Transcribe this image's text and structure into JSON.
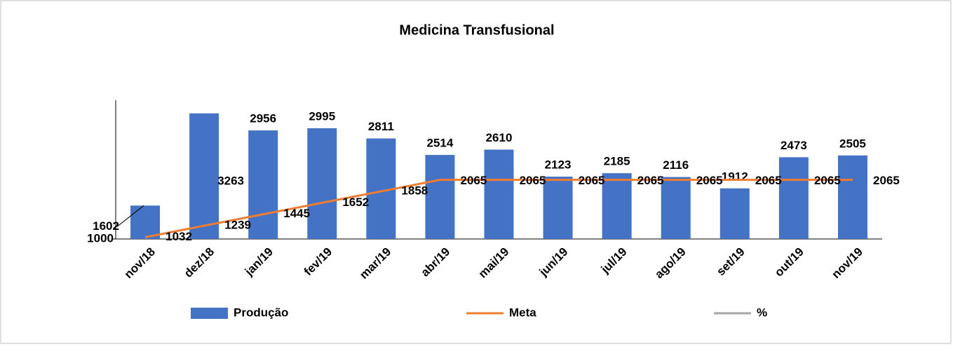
{
  "chart_data": {
    "type": "bar",
    "title": "Medicina Transfusional",
    "categories": [
      "nov/18",
      "dez/18",
      "jan/19",
      "fev/19",
      "mar/19",
      "abr/19",
      "mai/19",
      "jun/19",
      "jul/19",
      "ago/19",
      "set/19",
      "out/19",
      "nov/19"
    ],
    "series": [
      {
        "name": "Produção",
        "type": "bar",
        "color": "#4472c4",
        "values": [
          1602,
          3263,
          2956,
          2995,
          2811,
          2514,
          2610,
          2123,
          2185,
          2116,
          1912,
          2473,
          2505
        ]
      },
      {
        "name": "Meta",
        "type": "line",
        "color": "#ed7d31",
        "values": [
          1032,
          1239,
          1445,
          1652,
          1858,
          2065,
          2065,
          2065,
          2065,
          2065,
          2065,
          2065,
          2065
        ]
      },
      {
        "name": "%",
        "type": "line",
        "color": "#a5a5a5",
        "values": [
          null,
          null,
          null,
          null,
          null,
          null,
          null,
          null,
          null,
          null,
          null,
          null,
          null
        ]
      }
    ],
    "ylim": [
      1000,
      3500
    ],
    "yticks": [
      1000
    ]
  }
}
